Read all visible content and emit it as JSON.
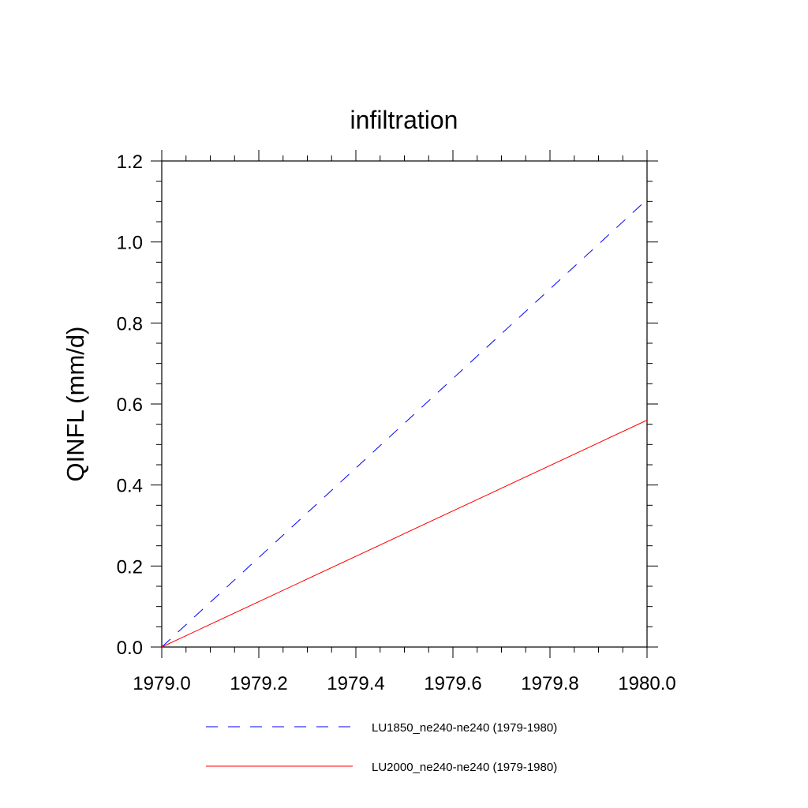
{
  "chart_data": {
    "type": "line",
    "title": "infiltration",
    "xlabel": "",
    "ylabel": "QINFL  (mm/d)",
    "xlim": [
      1979.0,
      1980.0
    ],
    "ylim": [
      0.0,
      1.2
    ],
    "x_ticks": [
      "1979.0",
      "1979.2",
      "1979.4",
      "1979.6",
      "1979.8",
      "1980.0"
    ],
    "y_ticks": [
      "0.0",
      "0.2",
      "0.4",
      "0.6",
      "0.8",
      "1.0",
      "1.2"
    ],
    "grid": false,
    "legend_position": "bottom",
    "series": [
      {
        "name": "LU1850_ne240-ne240 (1979-1980)",
        "color": "#0000ff",
        "style": "dashed",
        "x": [
          1979.0,
          1980.0
        ],
        "y": [
          0.0,
          1.105
        ]
      },
      {
        "name": "LU2000_ne240-ne240 (1979-1980)",
        "color": "#ff0000",
        "style": "solid",
        "x": [
          1979.0,
          1980.0
        ],
        "y": [
          0.0,
          0.56
        ]
      }
    ]
  }
}
